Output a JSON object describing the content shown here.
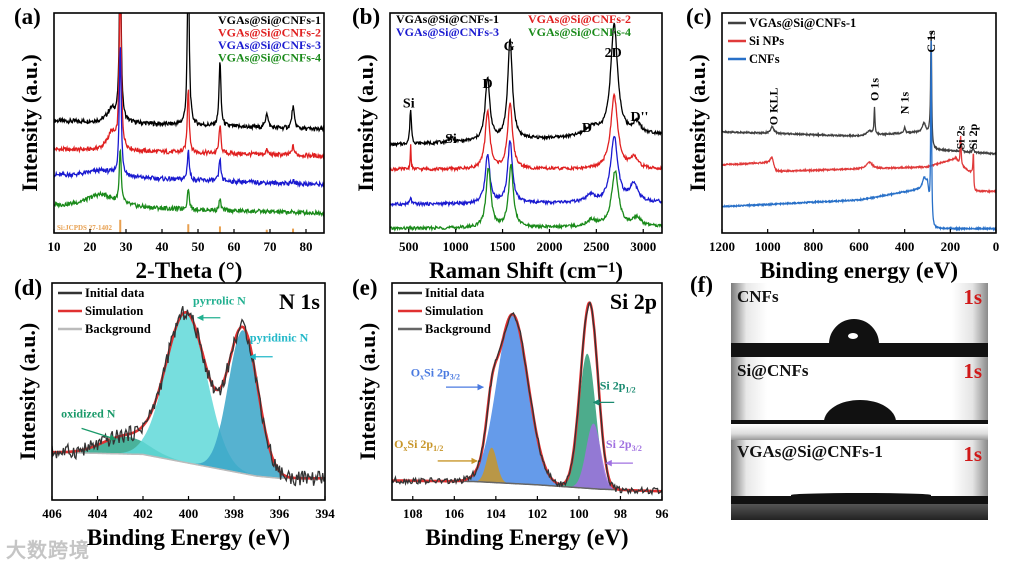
{
  "watermark": "大数跨境",
  "panel_f": {
    "panel": "(f)",
    "frames": [
      {
        "label": "CNFs",
        "time": "1s"
      },
      {
        "label": "Si@CNFs",
        "time": "1s"
      },
      {
        "label": "VGAs@Si@CNFs-1",
        "time": "1s"
      }
    ]
  },
  "chart_data": [
    {
      "id": "a",
      "panel": "(a)",
      "type": "line",
      "peak_shape": "lorentzian",
      "xlabel": "2-Theta (°)",
      "ylabel": "Intensity (a.u.)",
      "xlim": [
        10,
        85
      ],
      "ylim": [
        0,
        100
      ],
      "xticks": [
        10,
        20,
        30,
        40,
        50,
        60,
        70,
        80
      ],
      "grid": false,
      "legend": {
        "placement": "top-right",
        "style": "text"
      },
      "series": [
        {
          "name": "VGAs@Si@CNFs-1",
          "color": "#000000",
          "baseline": [
            [
              10,
              51
            ],
            [
              85,
              47
            ]
          ],
          "peaks": [
            [
              26,
              6,
              1.5
            ],
            [
              28.4,
              80,
              0.3
            ],
            [
              47.3,
              80,
              0.3
            ],
            [
              56.1,
              30,
              0.3
            ],
            [
              69.1,
              7,
              0.4
            ],
            [
              76.4,
              10,
              0.4
            ]
          ],
          "noise": 1.0
        },
        {
          "name": "VGAs@Si@CNFs-2",
          "color": "#e02020",
          "baseline": [
            [
              10,
              38
            ],
            [
              85,
              35
            ]
          ],
          "peaks": [
            [
              26,
              8,
              1.5
            ],
            [
              28.4,
              80,
              0.3
            ],
            [
              47.3,
              30,
              0.3
            ],
            [
              56.1,
              13,
              0.3
            ],
            [
              69.1,
              2,
              0.4
            ],
            [
              76.4,
              4,
              0.4
            ]
          ],
          "noise": 1.0
        },
        {
          "name": "VGAs@Si@CNFs-3",
          "color": "#1a1ad0",
          "baseline": [
            [
              10,
              26
            ],
            [
              85,
              22
            ]
          ],
          "peaks": [
            [
              23,
              3,
              5
            ],
            [
              28.4,
              60,
              0.3
            ],
            [
              47.3,
              14,
              0.3
            ],
            [
              56.1,
              10,
              0.3
            ],
            [
              76.4,
              1,
              0.4
            ]
          ],
          "noise": 1.0
        },
        {
          "name": "VGAs@Si@CNFs-4",
          "color": "#1a8a1a",
          "baseline": [
            [
              10,
              12
            ],
            [
              85,
              9
            ]
          ],
          "peaks": [
            [
              23,
              6,
              5
            ],
            [
              28.4,
              25,
              0.3
            ],
            [
              47.3,
              10,
              0.3
            ],
            [
              56.1,
              5,
              0.3
            ]
          ],
          "noise": 1.0
        }
      ],
      "reference": {
        "label": "Si:JCPDS 27-1402",
        "color": "#e8a050",
        "positions": [
          28.4,
          47.3,
          56.1,
          69.1,
          76.4
        ],
        "heights": [
          6,
          4,
          3,
          1.5,
          2
        ]
      },
      "annotations": []
    },
    {
      "id": "b",
      "panel": "(b)",
      "type": "line",
      "peak_shape": "lorentzian",
      "xlabel": "Raman Shift (cm⁻¹)",
      "ylabel": "Intensity (a.u.)",
      "xlim": [
        300,
        3200
      ],
      "ylim": [
        0,
        100
      ],
      "xticks": [
        500,
        1000,
        1500,
        2000,
        2500,
        3000
      ],
      "grid": false,
      "legend": {
        "placement": "top",
        "style": "text-2col"
      },
      "series": [
        {
          "name": "VGAs@Si@CNFs-1",
          "color": "#000000",
          "baseline": [
            [
              300,
              40
            ],
            [
              3200,
              45
            ]
          ],
          "peaks": [
            [
              520,
              16,
              10
            ],
            [
              950,
              2,
              30
            ],
            [
              1340,
              28,
              30
            ],
            [
              1580,
              45,
              30
            ],
            [
              2450,
              4,
              80
            ],
            [
              2690,
              50,
              45
            ],
            [
              2930,
              5,
              50
            ]
          ],
          "noise": 0.7
        },
        {
          "name": "VGAs@Si@CNFs-2",
          "color": "#e02020",
          "baseline": [
            [
              300,
              29
            ],
            [
              3200,
              29
            ]
          ],
          "peaks": [
            [
              520,
              11,
              5
            ],
            [
              1340,
              26,
              30
            ],
            [
              1580,
              30,
              30
            ],
            [
              2690,
              33,
              45
            ],
            [
              2900,
              5,
              50
            ]
          ],
          "noise": 0.7
        },
        {
          "name": "VGAs@Si@CNFs-3",
          "color": "#1a1ad0",
          "baseline": [
            [
              300,
              13
            ],
            [
              3200,
              14
            ]
          ],
          "peaks": [
            [
              520,
              3,
              10
            ],
            [
              1340,
              22,
              30
            ],
            [
              1580,
              28,
              30
            ],
            [
              2440,
              3,
              60
            ],
            [
              2690,
              30,
              45
            ],
            [
              2900,
              8,
              50
            ]
          ],
          "noise": 0.7
        },
        {
          "name": "VGAs@Si@CNFs-4",
          "color": "#1a8a1a",
          "baseline": [
            [
              300,
              2
            ],
            [
              3200,
              3
            ]
          ],
          "peaks": [
            [
              1350,
              27,
              30
            ],
            [
              1590,
              28,
              30
            ],
            [
              2450,
              3,
              60
            ],
            [
              2700,
              25,
              45
            ],
            [
              2930,
              4,
              50
            ]
          ],
          "noise": 0.7
        }
      ],
      "annotations": [
        {
          "text": "Si",
          "x": 500,
          "y": 57
        },
        {
          "text": "Si",
          "x": 950,
          "y": 41
        },
        {
          "text": "D",
          "x": 1340,
          "y": 66
        },
        {
          "text": "G",
          "x": 1570,
          "y": 83
        },
        {
          "text": "D'",
          "x": 2420,
          "y": 46
        },
        {
          "text": "2D",
          "x": 2680,
          "y": 80
        },
        {
          "text": "D''",
          "x": 2960,
          "y": 51
        }
      ]
    },
    {
      "id": "c",
      "panel": "(c)",
      "type": "survey",
      "peak_shape": "lorentzian",
      "xlabel": "Binding energy (eV)",
      "ylabel": "Intensity (a.u.)",
      "xlim": [
        1200,
        0
      ],
      "ylim": [
        0,
        100
      ],
      "xticks": [
        1200,
        1000,
        800,
        600,
        400,
        200,
        0
      ],
      "grid": false,
      "legend": {
        "placement": "top-left",
        "style": "line"
      },
      "series": [
        {
          "name": "VGAs@Si@CNFs-1",
          "color": "#404040",
          "baseline": [
            [
              1200,
              46
            ],
            [
              600,
              44
            ],
            [
              320,
              46
            ],
            [
              290,
              45
            ],
            [
              282,
              38
            ],
            [
              0,
              36
            ]
          ],
          "peaks": [
            [
              980,
              3,
              8
            ],
            [
              555,
              2,
              15
            ],
            [
              532,
              12,
              2.5
            ],
            [
              400,
              3,
              3
            ],
            [
              315,
              4,
              8
            ],
            [
              284,
              52,
              2.5
            ],
            [
              150,
              2,
              3
            ],
            [
              100,
              2,
              3
            ]
          ],
          "noise": 0.3
        },
        {
          "name": "Si NPs",
          "color": "#e03a3a",
          "baseline": [
            [
              1200,
              31
            ],
            [
              985,
              32
            ],
            [
              965,
              28
            ],
            [
              300,
              30
            ],
            [
              175,
              34
            ],
            [
              160,
              31
            ],
            [
              102,
              27
            ],
            [
              96,
              19
            ],
            [
              0,
              19
            ]
          ],
          "peaks": [
            [
              980,
              3,
              8
            ],
            [
              555,
              3,
              15
            ],
            [
              155,
              14,
              2.5
            ],
            [
              99,
              14,
              2
            ]
          ],
          "noise": 0.3
        },
        {
          "name": "CNFs",
          "color": "#2870c8",
          "baseline": [
            [
              1200,
              12
            ],
            [
              600,
              15
            ],
            [
              330,
              20
            ],
            [
              300,
              22
            ],
            [
              288,
              8
            ],
            [
              280,
              2
            ],
            [
              0,
              2
            ]
          ],
          "peaks": [
            [
              315,
              4,
              8
            ],
            [
              284,
              82,
              2.2
            ]
          ],
          "noise": 0.3
        }
      ],
      "annotations": [
        {
          "text": "O KLL",
          "x": 975,
          "y": 49
        },
        {
          "text": "O 1s",
          "x": 532,
          "y": 60
        },
        {
          "text": "N 1s",
          "x": 400,
          "y": 54
        },
        {
          "text": "C 1s",
          "x": 284,
          "y": 82
        },
        {
          "text": "Si 2s",
          "x": 155,
          "y": 38
        },
        {
          "text": "Si 2p",
          "x": 100,
          "y": 38
        }
      ]
    },
    {
      "id": "d",
      "panel": "(d)",
      "type": "xps-fit",
      "corner_label": "N 1s",
      "xlabel": "Binding Energy (eV)",
      "ylabel": "Intensity (a.u.)",
      "xlim": [
        406,
        394
      ],
      "ylim": [
        0,
        100
      ],
      "xticks": [
        406,
        404,
        402,
        400,
        398,
        396,
        394
      ],
      "grid": false,
      "legend": {
        "placement": "top-left",
        "style": "line",
        "entries": [
          {
            "label": "Initial data",
            "color": "#333333"
          },
          {
            "label": "Simulation",
            "color": "#e03030"
          },
          {
            "label": "Background",
            "color": "#bbbbbb"
          }
        ]
      },
      "background": [
        [
          406,
          22
        ],
        [
          402,
          21
        ],
        [
          399,
          15
        ],
        [
          397,
          11
        ],
        [
          396,
          10
        ],
        [
          394,
          10
        ]
      ],
      "components": [
        {
          "name": "oxidized N",
          "center": 402.8,
          "height": 8,
          "sigma": 1.0,
          "color": "#2aa58a"
        },
        {
          "name": "pyrrolic N",
          "center": 400.1,
          "height": 69,
          "sigma": 0.9,
          "color": "#5fd8d8"
        },
        {
          "name": "pyridinic N",
          "center": 397.6,
          "height": 66,
          "sigma": 0.65,
          "color": "#38a4c8"
        }
      ],
      "data_noise": 3.5,
      "annotations": [
        {
          "text": "pyrrolic N",
          "x": 399.8,
          "y": 90,
          "color": "#22b090",
          "arrow": [
            398.6,
            84,
            399.6,
            84
          ]
        },
        {
          "text": "pyridinic N",
          "x": 397.3,
          "y": 73,
          "color": "#22b8c8",
          "arrow": [
            396.3,
            66,
            397.3,
            66
          ]
        },
        {
          "text": "oxidized N",
          "x": 405.6,
          "y": 38,
          "color": "#1a9a6a",
          "arrow": [
            404.7,
            33,
            403.2,
            28
          ]
        }
      ]
    },
    {
      "id": "e",
      "panel": "(e)",
      "type": "xps-fit",
      "corner_label": "Si 2p",
      "xlabel": "Binding Energy (eV)",
      "ylabel": "Intensity (a.u.)",
      "xlim": [
        109,
        96
      ],
      "ylim": [
        0,
        100
      ],
      "xticks": [
        108,
        106,
        104,
        102,
        100,
        98,
        96
      ],
      "grid": false,
      "legend": {
        "placement": "top-left",
        "style": "line",
        "entries": [
          {
            "label": "Initial data",
            "color": "#333333"
          },
          {
            "label": "Simulation",
            "color": "#e03030"
          },
          {
            "label": "Background",
            "color": "#666666"
          }
        ]
      },
      "background": [
        [
          109,
          9
        ],
        [
          105,
          8.5
        ],
        [
          102,
          7
        ],
        [
          99,
          5
        ],
        [
          96,
          4
        ]
      ],
      "components": [
        {
          "name": "OxSi 2p3/2",
          "center": 103.2,
          "height": 78,
          "sigma": 0.75,
          "color": "#4a8ae6"
        },
        {
          "name": "OxSi 2p1/2",
          "center": 104.2,
          "height": 16,
          "sigma": 0.25,
          "color": "#c8962a"
        },
        {
          "name": "Si 2p1/2",
          "center": 99.6,
          "height": 62,
          "sigma": 0.4,
          "color": "#2e9e78"
        },
        {
          "name": "Si 2p3/2",
          "center": 99.3,
          "height": 30,
          "sigma": 0.35,
          "color": "#a070e0"
        }
      ],
      "data_noise": 1.5,
      "annotations": [
        {
          "segments": [
            {
              "t": "O"
            },
            {
              "t": "x",
              "sub": true
            },
            {
              "t": "Si 2p"
            },
            {
              "t": "3/2",
              "sub": true
            }
          ],
          "x": 108.1,
          "y": 57,
          "color": "#4a7ae0",
          "arrow": [
            106.4,
            52,
            104.6,
            52
          ]
        },
        {
          "segments": [
            {
              "t": "O"
            },
            {
              "t": "x",
              "sub": true
            },
            {
              "t": "Si 2p"
            },
            {
              "t": "1/2",
              "sub": true
            }
          ],
          "x": 108.9,
          "y": 24,
          "color": "#c8962a",
          "arrow": [
            106.8,
            18,
            104.9,
            18
          ]
        },
        {
          "segments": [
            {
              "t": "Si 2p"
            },
            {
              "t": "1/2",
              "sub": true
            }
          ],
          "x": 99.0,
          "y": 51,
          "color": "#1a8a70",
          "arrow": [
            98.3,
            45,
            99.3,
            45
          ]
        },
        {
          "segments": [
            {
              "t": "Si 2p"
            },
            {
              "t": "3/2",
              "sub": true
            }
          ],
          "x": 98.7,
          "y": 24,
          "color": "#a070e0",
          "arrow": [
            97.4,
            17,
            98.7,
            17
          ]
        }
      ]
    }
  ]
}
